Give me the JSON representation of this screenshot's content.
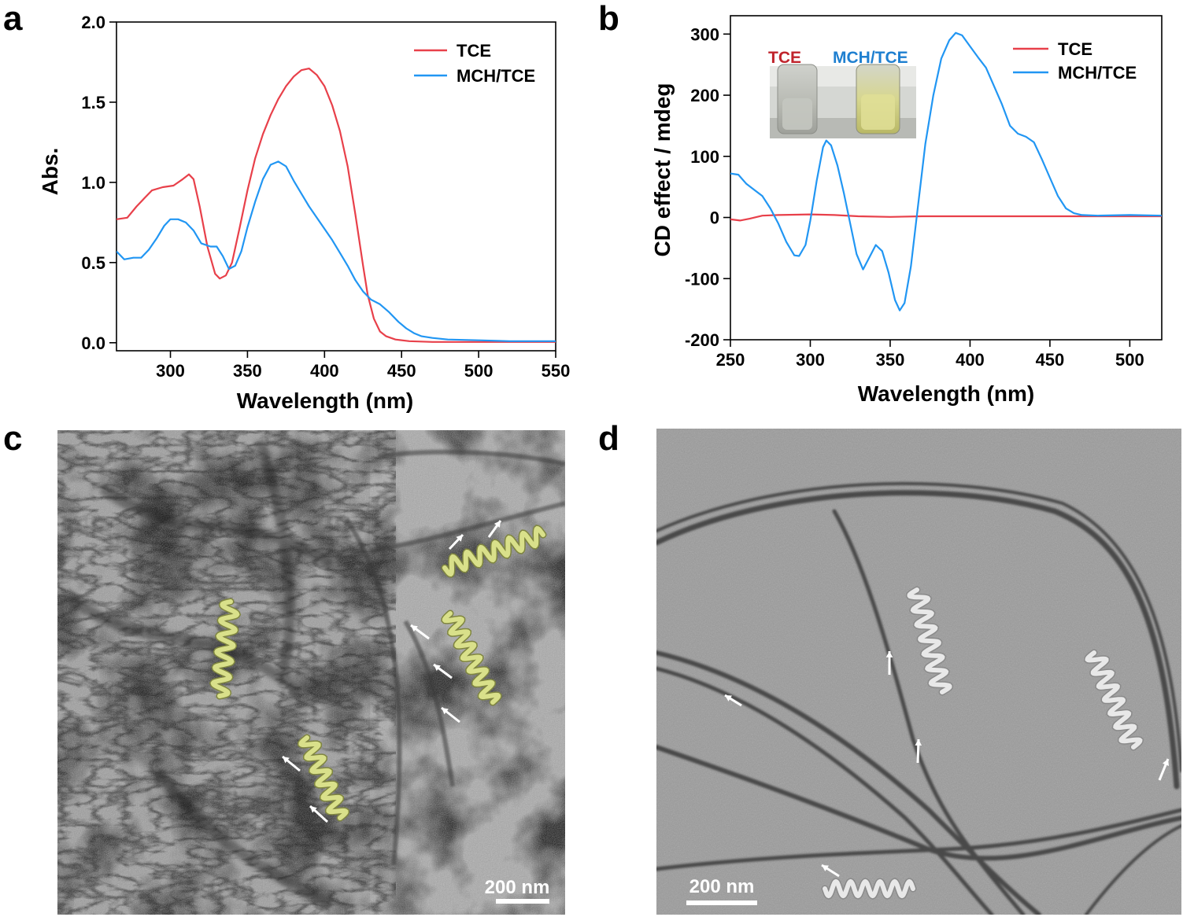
{
  "panels": {
    "a": "a",
    "b": "b",
    "c": "c",
    "d": "d"
  },
  "colors": {
    "tce": "#e8404a",
    "mch_tce": "#2196f3",
    "helix_yellow": "#d9e08a",
    "helix_white": "#e8e8e8"
  },
  "chart_data": [
    {
      "type": "line",
      "panel": "a",
      "xlabel": "Wavelength (nm)",
      "ylabel": "Abs.",
      "xlim": [
        265,
        550
      ],
      "ylim": [
        -0.05,
        2.0
      ],
      "xticks": [
        300,
        350,
        400,
        450,
        500,
        550
      ],
      "yticks": [
        0.0,
        0.5,
        1.0,
        1.5,
        2.0
      ],
      "ytick_labels": [
        "0.0",
        "0.5",
        "1.0",
        "1.5",
        "2.0"
      ],
      "legend": "top-right",
      "series": [
        {
          "name": "TCE",
          "color": "#e8404a",
          "points": [
            [
              265,
              0.77
            ],
            [
              272,
              0.78
            ],
            [
              278,
              0.85
            ],
            [
              283,
              0.9
            ],
            [
              288,
              0.95
            ],
            [
              295,
              0.97
            ],
            [
              302,
              0.98
            ],
            [
              308,
              1.02
            ],
            [
              312,
              1.05
            ],
            [
              315,
              1.02
            ],
            [
              319,
              0.85
            ],
            [
              324,
              0.6
            ],
            [
              329,
              0.43
            ],
            [
              332,
              0.4
            ],
            [
              336,
              0.42
            ],
            [
              340,
              0.5
            ],
            [
              345,
              0.72
            ],
            [
              350,
              0.95
            ],
            [
              355,
              1.15
            ],
            [
              360,
              1.3
            ],
            [
              365,
              1.42
            ],
            [
              370,
              1.52
            ],
            [
              375,
              1.6
            ],
            [
              380,
              1.66
            ],
            [
              385,
              1.7
            ],
            [
              390,
              1.71
            ],
            [
              395,
              1.67
            ],
            [
              400,
              1.6
            ],
            [
              405,
              1.48
            ],
            [
              410,
              1.32
            ],
            [
              415,
              1.1
            ],
            [
              420,
              0.8
            ],
            [
              425,
              0.48
            ],
            [
              428,
              0.3
            ],
            [
              432,
              0.15
            ],
            [
              436,
              0.07
            ],
            [
              440,
              0.04
            ],
            [
              446,
              0.02
            ],
            [
              455,
              0.01
            ],
            [
              470,
              0.005
            ],
            [
              500,
              0.005
            ],
            [
              550,
              0.005
            ]
          ]
        },
        {
          "name": "MCH/TCE",
          "color": "#2196f3",
          "points": [
            [
              265,
              0.57
            ],
            [
              270,
              0.52
            ],
            [
              276,
              0.53
            ],
            [
              281,
              0.53
            ],
            [
              286,
              0.58
            ],
            [
              291,
              0.65
            ],
            [
              296,
              0.73
            ],
            [
              300,
              0.77
            ],
            [
              305,
              0.77
            ],
            [
              310,
              0.75
            ],
            [
              315,
              0.7
            ],
            [
              320,
              0.62
            ],
            [
              326,
              0.6
            ],
            [
              330,
              0.6
            ],
            [
              334,
              0.54
            ],
            [
              338,
              0.46
            ],
            [
              342,
              0.48
            ],
            [
              346,
              0.57
            ],
            [
              350,
              0.72
            ],
            [
              355,
              0.88
            ],
            [
              360,
              1.02
            ],
            [
              365,
              1.11
            ],
            [
              370,
              1.13
            ],
            [
              375,
              1.1
            ],
            [
              380,
              1.01
            ],
            [
              385,
              0.93
            ],
            [
              390,
              0.85
            ],
            [
              395,
              0.78
            ],
            [
              400,
              0.71
            ],
            [
              405,
              0.64
            ],
            [
              410,
              0.56
            ],
            [
              415,
              0.48
            ],
            [
              420,
              0.39
            ],
            [
              425,
              0.32
            ],
            [
              430,
              0.27
            ],
            [
              436,
              0.24
            ],
            [
              442,
              0.19
            ],
            [
              448,
              0.13
            ],
            [
              453,
              0.09
            ],
            [
              458,
              0.06
            ],
            [
              463,
              0.04
            ],
            [
              470,
              0.03
            ],
            [
              480,
              0.02
            ],
            [
              500,
              0.015
            ],
            [
              520,
              0.01
            ],
            [
              550,
              0.01
            ]
          ]
        }
      ]
    },
    {
      "type": "line",
      "panel": "b",
      "xlabel": "Wavelength (nm)",
      "ylabel": "CD effect / mdeg",
      "xlim": [
        250,
        520
      ],
      "ylim": [
        -200,
        330
      ],
      "xticks": [
        250,
        300,
        350,
        400,
        450,
        500
      ],
      "yticks": [
        -200,
        -100,
        0,
        100,
        200,
        300
      ],
      "legend": "top-right",
      "series": [
        {
          "name": "TCE",
          "color": "#e8404a",
          "points": [
            [
              250,
              -3
            ],
            [
              256,
              -5
            ],
            [
              262,
              -2
            ],
            [
              270,
              3
            ],
            [
              280,
              4
            ],
            [
              300,
              5
            ],
            [
              315,
              4
            ],
            [
              330,
              2
            ],
            [
              350,
              1
            ],
            [
              370,
              2
            ],
            [
              400,
              2
            ],
            [
              430,
              2
            ],
            [
              460,
              2
            ],
            [
              490,
              2
            ],
            [
              520,
              2
            ]
          ]
        },
        {
          "name": "MCH/TCE",
          "color": "#2196f3",
          "points": [
            [
              250,
              72
            ],
            [
              255,
              70
            ],
            [
              260,
              55
            ],
            [
              265,
              45
            ],
            [
              270,
              35
            ],
            [
              275,
              15
            ],
            [
              280,
              -10
            ],
            [
              285,
              -40
            ],
            [
              290,
              -62
            ],
            [
              293,
              -63
            ],
            [
              297,
              -45
            ],
            [
              300,
              -5
            ],
            [
              304,
              60
            ],
            [
              308,
              115
            ],
            [
              310,
              126
            ],
            [
              313,
              118
            ],
            [
              317,
              85
            ],
            [
              321,
              40
            ],
            [
              325,
              -10
            ],
            [
              329,
              -60
            ],
            [
              333,
              -85
            ],
            [
              337,
              -65
            ],
            [
              341,
              -45
            ],
            [
              345,
              -55
            ],
            [
              349,
              -90
            ],
            [
              353,
              -135
            ],
            [
              356,
              -152
            ],
            [
              359,
              -140
            ],
            [
              363,
              -80
            ],
            [
              367,
              10
            ],
            [
              372,
              120
            ],
            [
              377,
              200
            ],
            [
              382,
              260
            ],
            [
              387,
              290
            ],
            [
              391,
              302
            ],
            [
              395,
              298
            ],
            [
              400,
              280
            ],
            [
              405,
              262
            ],
            [
              410,
              245
            ],
            [
              415,
              215
            ],
            [
              420,
              185
            ],
            [
              425,
              150
            ],
            [
              430,
              137
            ],
            [
              435,
              132
            ],
            [
              440,
              123
            ],
            [
              445,
              95
            ],
            [
              450,
              65
            ],
            [
              455,
              35
            ],
            [
              460,
              15
            ],
            [
              465,
              7
            ],
            [
              470,
              4
            ],
            [
              480,
              3
            ],
            [
              500,
              4
            ],
            [
              520,
              3
            ]
          ]
        }
      ]
    }
  ],
  "inset_b": {
    "label_tce": "TCE",
    "label_mch": "MCH/TCE",
    "color_tce": "#c0242c",
    "color_mch": "#1e7fd0"
  },
  "micrographs": {
    "c": {
      "scale_bar": "200 nm"
    },
    "d": {
      "scale_bar": "200 nm"
    }
  }
}
